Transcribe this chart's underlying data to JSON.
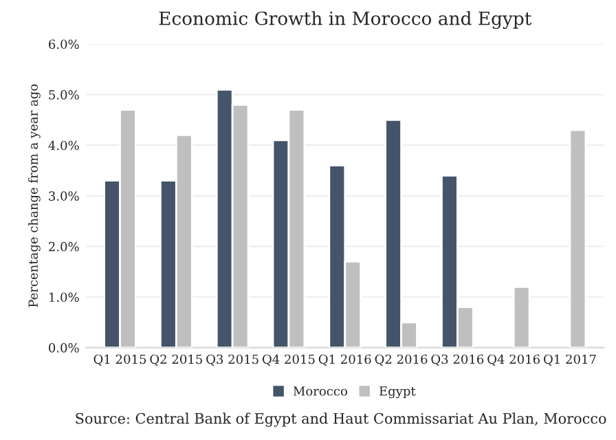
{
  "chart_data": {
    "type": "bar",
    "title": "Economic Growth in Morocco and Egypt",
    "ylabel": "Percentage change from a year ago",
    "categories": [
      "Q1 2015",
      "Q2 2015",
      "Q3 2015",
      "Q4 2015",
      "Q1 2016",
      "Q2 2016",
      "Q3 2016",
      "Q4 2016",
      "Q1 2017"
    ],
    "series": [
      {
        "name": "Morocco",
        "color": "#44546a",
        "values": [
          3.3,
          3.3,
          5.1,
          4.1,
          3.6,
          4.5,
          3.4,
          null,
          null
        ]
      },
      {
        "name": "Egypt",
        "color": "#bfbfbf",
        "values": [
          4.7,
          4.2,
          4.8,
          4.7,
          1.7,
          0.5,
          0.8,
          1.2,
          4.3
        ]
      }
    ],
    "ylim": [
      0,
      6
    ],
    "yticks": [
      {
        "value": 0,
        "label": "0.0%"
      },
      {
        "value": 1,
        "label": "1.0%"
      },
      {
        "value": 2,
        "label": "2.0%"
      },
      {
        "value": 3,
        "label": "3.0%"
      },
      {
        "value": 4,
        "label": "4.0%"
      },
      {
        "value": 5,
        "label": "5.0%"
      },
      {
        "value": 6,
        "label": "6.0%"
      }
    ],
    "grid": "y",
    "legend": "bottom",
    "annotations": [
      "Source: Central Bank of Egypt and Haut Commissariat Au Plan, Morocco"
    ]
  }
}
